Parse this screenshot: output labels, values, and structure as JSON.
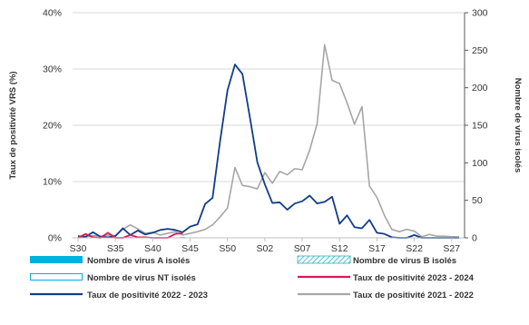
{
  "chart_data": {
    "type": "line",
    "title": "",
    "y_left": {
      "label": "Taux de positivité VRS (%)",
      "min": 0,
      "max": 40,
      "ticks": [
        0,
        10,
        20,
        30,
        40
      ],
      "tick_labels": [
        "0%",
        "10%",
        "20%",
        "30%",
        "40%"
      ]
    },
    "y_right": {
      "label": "Nombre de virus isolés",
      "min": 0,
      "max": 300,
      "ticks": [
        0,
        50,
        100,
        150,
        200,
        250,
        300
      ],
      "tick_labels": [
        "0",
        "50",
        "100",
        "150",
        "200",
        "250",
        "300"
      ]
    },
    "x_axis": {
      "start_week": 30,
      "weeks_in_year": 52,
      "count": 52,
      "ticks": [
        0,
        5,
        10,
        15,
        20,
        25,
        30,
        35,
        40,
        45,
        50
      ],
      "tick_labels": [
        "S30",
        "S35",
        "S40",
        "S45",
        "S50",
        "S02",
        "S07",
        "S12",
        "S17",
        "S22",
        "S27"
      ]
    },
    "legend": {
      "position": "bottom",
      "items": [
        {
          "label": "Nombre de virus A isolés",
          "style": "bar-solid",
          "color": "#00b0e0"
        },
        {
          "label": "Nombre de virus B isolés",
          "style": "bar-hatched",
          "color": "#2ab0c8"
        },
        {
          "label": "Nombre de virus NT isolés",
          "style": "bar-outline",
          "color": "#00b0e0"
        },
        {
          "label": "Taux de positivité 2023 - 2024",
          "style": "line",
          "color": "#d6195e"
        },
        {
          "label": "Taux de positivité 2022 - 2023",
          "style": "line",
          "color": "#123d8a"
        },
        {
          "label": "Taux de positivité 2021 - 2022",
          "style": "line",
          "color": "#a6a6a6"
        }
      ]
    },
    "series": [
      {
        "name": "Taux de positivité 2021 - 2022",
        "axis": "left",
        "color": "#a6a6a6",
        "values": [
          0.3,
          0.2,
          0.4,
          0.3,
          0.5,
          0.4,
          1.5,
          2.3,
          1.6,
          0.8,
          1.0,
          0.5,
          0.8,
          1.1,
          0.5,
          0.8,
          1.1,
          1.5,
          2.3,
          3.7,
          5.3,
          12.5,
          9.3,
          9.1,
          8.7,
          11.6,
          9.7,
          11.8,
          11.2,
          12.3,
          12.1,
          15.6,
          20.3,
          34.3,
          28.0,
          27.4,
          24.0,
          20.2,
          23.3,
          9.2,
          7.2,
          4.0,
          1.5,
          1.1,
          1.5,
          1.2,
          0.2,
          0.6,
          0.3,
          0.3,
          0.2,
          0.2
        ]
      },
      {
        "name": "Taux de positivité 2022 - 2023",
        "axis": "left",
        "color": "#123d8a",
        "values": [
          0.3,
          0.2,
          1.0,
          0.2,
          0.1,
          0.3,
          1.7,
          0.5,
          1.3,
          0.6,
          0.9,
          1.4,
          1.6,
          1.4,
          1.0,
          2.0,
          2.4,
          6.0,
          7.1,
          17.1,
          26.2,
          30.8,
          29.1,
          21.4,
          13.4,
          9.5,
          6.2,
          6.3,
          5.0,
          6.1,
          6.5,
          7.5,
          6.1,
          6.4,
          7.3,
          2.5,
          4.0,
          1.9,
          1.7,
          3.2,
          0.9,
          0.7,
          0.1,
          0.0,
          0.0,
          0.5,
          0.0,
          0.0,
          0.0,
          0.0,
          0.0,
          0.0
        ]
      },
      {
        "name": "Taux de positivité 2023 - 2024",
        "axis": "left",
        "color": "#d6195e",
        "values": [
          0.0,
          0.7,
          0.1,
          0.0,
          0.9,
          0.0,
          0.0,
          0.5,
          0.1,
          0.1,
          0.0,
          0.0,
          0.0,
          0.7,
          0.8
        ]
      }
    ],
    "bars": {
      "axis": "right",
      "weeks": [
        6,
        7,
        9,
        14
      ],
      "A_values": [
        1,
        1,
        1,
        1
      ],
      "B_values": [
        0,
        0,
        0,
        0
      ],
      "NT_values": [
        0,
        0,
        0,
        0
      ]
    }
  }
}
